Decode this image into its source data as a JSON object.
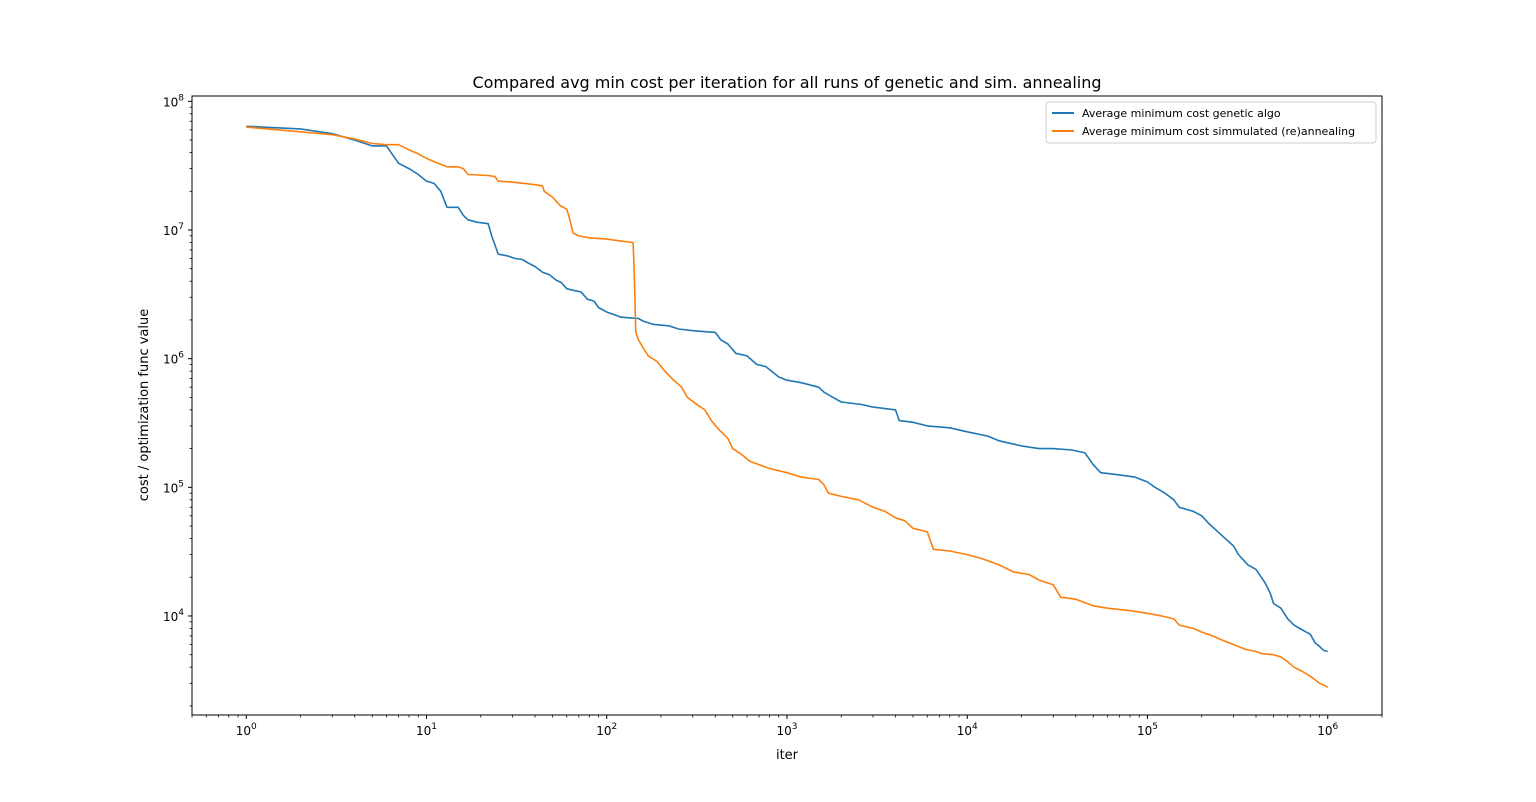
{
  "chart_data": {
    "type": "line",
    "title": "Compared avg min cost per iteration for all runs of genetic and sim. annealing",
    "xlabel": "iter",
    "ylabel": "cost / optimization func value",
    "xscale": "log",
    "yscale": "log",
    "xlim": [
      0.5,
      2000000
    ],
    "ylim": [
      1700,
      110000000
    ],
    "grid": false,
    "legend_position": "top-right",
    "x_ticks": [
      {
        "value": 1,
        "base": "10",
        "exp": "0"
      },
      {
        "value": 10,
        "base": "10",
        "exp": "1"
      },
      {
        "value": 100,
        "base": "10",
        "exp": "2"
      },
      {
        "value": 1000,
        "base": "10",
        "exp": "3"
      },
      {
        "value": 10000,
        "base": "10",
        "exp": "4"
      },
      {
        "value": 100000,
        "base": "10",
        "exp": "5"
      },
      {
        "value": 1000000,
        "base": "10",
        "exp": "6"
      }
    ],
    "y_ticks": [
      {
        "value": 10000,
        "base": "10",
        "exp": "4"
      },
      {
        "value": 100000,
        "base": "10",
        "exp": "5"
      },
      {
        "value": 1000000,
        "base": "10",
        "exp": "6"
      },
      {
        "value": 10000000,
        "base": "10",
        "exp": "7"
      },
      {
        "value": 100000000,
        "base": "10",
        "exp": "8"
      }
    ],
    "series": [
      {
        "name": "Average minimum cost genetic algo",
        "color": "#1f77b4",
        "points": [
          [
            1,
            64000000
          ],
          [
            2,
            61000000
          ],
          [
            3,
            56000000
          ],
          [
            4,
            50000000
          ],
          [
            5,
            45000000
          ],
          [
            6,
            45000000
          ],
          [
            7,
            33000000
          ],
          [
            8,
            30000000
          ],
          [
            9,
            27000000
          ],
          [
            10,
            24000000
          ],
          [
            11,
            23000000
          ],
          [
            12,
            20000000
          ],
          [
            13,
            15000000
          ],
          [
            15,
            15000000
          ],
          [
            16,
            13000000
          ],
          [
            17,
            12000000
          ],
          [
            19,
            11500000
          ],
          [
            22,
            11200000
          ],
          [
            23,
            9000000
          ],
          [
            25,
            6500000
          ],
          [
            28,
            6300000
          ],
          [
            31,
            6000000
          ],
          [
            34,
            5900000
          ],
          [
            37,
            5500000
          ],
          [
            40,
            5200000
          ],
          [
            44,
            4700000
          ],
          [
            48,
            4500000
          ],
          [
            52,
            4100000
          ],
          [
            56,
            3900000
          ],
          [
            60,
            3500000
          ],
          [
            65,
            3400000
          ],
          [
            72,
            3300000
          ],
          [
            78,
            2900000
          ],
          [
            85,
            2800000
          ],
          [
            90,
            2500000
          ],
          [
            100,
            2300000
          ],
          [
            110,
            2200000
          ],
          [
            120,
            2100000
          ],
          [
            150,
            2050000
          ],
          [
            160,
            1950000
          ],
          [
            180,
            1850000
          ],
          [
            220,
            1800000
          ],
          [
            250,
            1700000
          ],
          [
            300,
            1650000
          ],
          [
            400,
            1600000
          ],
          [
            430,
            1400000
          ],
          [
            470,
            1300000
          ],
          [
            520,
            1100000
          ],
          [
            600,
            1050000
          ],
          [
            680,
            900000
          ],
          [
            760,
            870000
          ],
          [
            820,
            800000
          ],
          [
            900,
            720000
          ],
          [
            1000,
            680000
          ],
          [
            1200,
            650000
          ],
          [
            1500,
            600000
          ],
          [
            1600,
            550000
          ],
          [
            1800,
            500000
          ],
          [
            2000,
            460000
          ],
          [
            2600,
            440000
          ],
          [
            3000,
            420000
          ],
          [
            4000,
            400000
          ],
          [
            4200,
            330000
          ],
          [
            5000,
            320000
          ],
          [
            6000,
            300000
          ],
          [
            8000,
            290000
          ],
          [
            10000,
            270000
          ],
          [
            13000,
            250000
          ],
          [
            15000,
            230000
          ],
          [
            20000,
            210000
          ],
          [
            25000,
            200000
          ],
          [
            30000,
            200000
          ],
          [
            38000,
            195000
          ],
          [
            45000,
            185000
          ],
          [
            50000,
            150000
          ],
          [
            55000,
            130000
          ],
          [
            70000,
            125000
          ],
          [
            85000,
            120000
          ],
          [
            100000,
            110000
          ],
          [
            110000,
            100000
          ],
          [
            125000,
            90000
          ],
          [
            140000,
            80000
          ],
          [
            150000,
            70000
          ],
          [
            180000,
            65000
          ],
          [
            200000,
            60000
          ],
          [
            220000,
            52000
          ],
          [
            260000,
            42000
          ],
          [
            300000,
            35000
          ],
          [
            320000,
            30000
          ],
          [
            360000,
            25000
          ],
          [
            400000,
            23000
          ],
          [
            450000,
            18000
          ],
          [
            480000,
            15000
          ],
          [
            500000,
            12500
          ],
          [
            550000,
            11500
          ],
          [
            600000,
            9500
          ],
          [
            650000,
            8500
          ],
          [
            700000,
            8000
          ],
          [
            800000,
            7200
          ],
          [
            850000,
            6200
          ],
          [
            900000,
            5800
          ],
          [
            950000,
            5400
          ],
          [
            1000000,
            5300
          ]
        ]
      },
      {
        "name": "Average minimum cost simmulated (re)annealing",
        "color": "#ff7f0e",
        "points": [
          [
            1,
            63000000
          ],
          [
            2,
            58000000
          ],
          [
            3,
            55000000
          ],
          [
            4,
            51000000
          ],
          [
            5,
            47000000
          ],
          [
            6,
            46000000
          ],
          [
            7,
            46000000
          ],
          [
            8,
            42000000
          ],
          [
            9,
            39000000
          ],
          [
            10,
            36000000
          ],
          [
            11,
            34000000
          ],
          [
            13,
            31000000
          ],
          [
            15,
            31000000
          ],
          [
            16,
            30000000
          ],
          [
            17,
            27000000
          ],
          [
            22,
            26500000
          ],
          [
            24,
            26000000
          ],
          [
            25,
            24000000
          ],
          [
            30,
            23500000
          ],
          [
            35,
            23000000
          ],
          [
            40,
            22500000
          ],
          [
            44,
            22000000
          ],
          [
            45,
            20000000
          ],
          [
            50,
            18000000
          ],
          [
            55,
            15500000
          ],
          [
            60,
            14500000
          ],
          [
            62,
            12500000
          ],
          [
            65,
            9500000
          ],
          [
            70,
            9000000
          ],
          [
            80,
            8700000
          ],
          [
            100,
            8500000
          ],
          [
            120,
            8200000
          ],
          [
            140,
            8000000
          ],
          [
            142,
            4800000
          ],
          [
            145,
            1600000
          ],
          [
            150,
            1400000
          ],
          [
            160,
            1200000
          ],
          [
            170,
            1050000
          ],
          [
            190,
            950000
          ],
          [
            210,
            800000
          ],
          [
            230,
            700000
          ],
          [
            260,
            600000
          ],
          [
            280,
            500000
          ],
          [
            310,
            450000
          ],
          [
            350,
            400000
          ],
          [
            380,
            330000
          ],
          [
            420,
            280000
          ],
          [
            470,
            240000
          ],
          [
            500,
            200000
          ],
          [
            560,
            180000
          ],
          [
            620,
            160000
          ],
          [
            700,
            150000
          ],
          [
            800,
            140000
          ],
          [
            1000,
            130000
          ],
          [
            1200,
            120000
          ],
          [
            1500,
            115000
          ],
          [
            1600,
            105000
          ],
          [
            1700,
            90000
          ],
          [
            2000,
            85000
          ],
          [
            2500,
            80000
          ],
          [
            3000,
            70000
          ],
          [
            3500,
            65000
          ],
          [
            4000,
            58000
          ],
          [
            4500,
            55000
          ],
          [
            5000,
            48000
          ],
          [
            6000,
            45000
          ],
          [
            6500,
            33000
          ],
          [
            8000,
            32000
          ],
          [
            10000,
            30000
          ],
          [
            12000,
            28000
          ],
          [
            15000,
            25000
          ],
          [
            18000,
            22000
          ],
          [
            22000,
            21000
          ],
          [
            25000,
            19000
          ],
          [
            30000,
            17500
          ],
          [
            33000,
            14000
          ],
          [
            40000,
            13500
          ],
          [
            50000,
            12000
          ],
          [
            60000,
            11500
          ],
          [
            80000,
            11000
          ],
          [
            100000,
            10500
          ],
          [
            120000,
            10000
          ],
          [
            140000,
            9500
          ],
          [
            150000,
            8500
          ],
          [
            180000,
            8000
          ],
          [
            200000,
            7500
          ],
          [
            230000,
            7000
          ],
          [
            260000,
            6500
          ],
          [
            300000,
            6000
          ],
          [
            350000,
            5500
          ],
          [
            400000,
            5300
          ],
          [
            430000,
            5100
          ],
          [
            500000,
            5000
          ],
          [
            550000,
            4800
          ],
          [
            600000,
            4400
          ],
          [
            650000,
            4000
          ],
          [
            700000,
            3800
          ],
          [
            750000,
            3600
          ],
          [
            800000,
            3400
          ],
          [
            850000,
            3200
          ],
          [
            900000,
            3000
          ],
          [
            950000,
            2900
          ],
          [
            1000000,
            2800
          ]
        ]
      }
    ]
  }
}
